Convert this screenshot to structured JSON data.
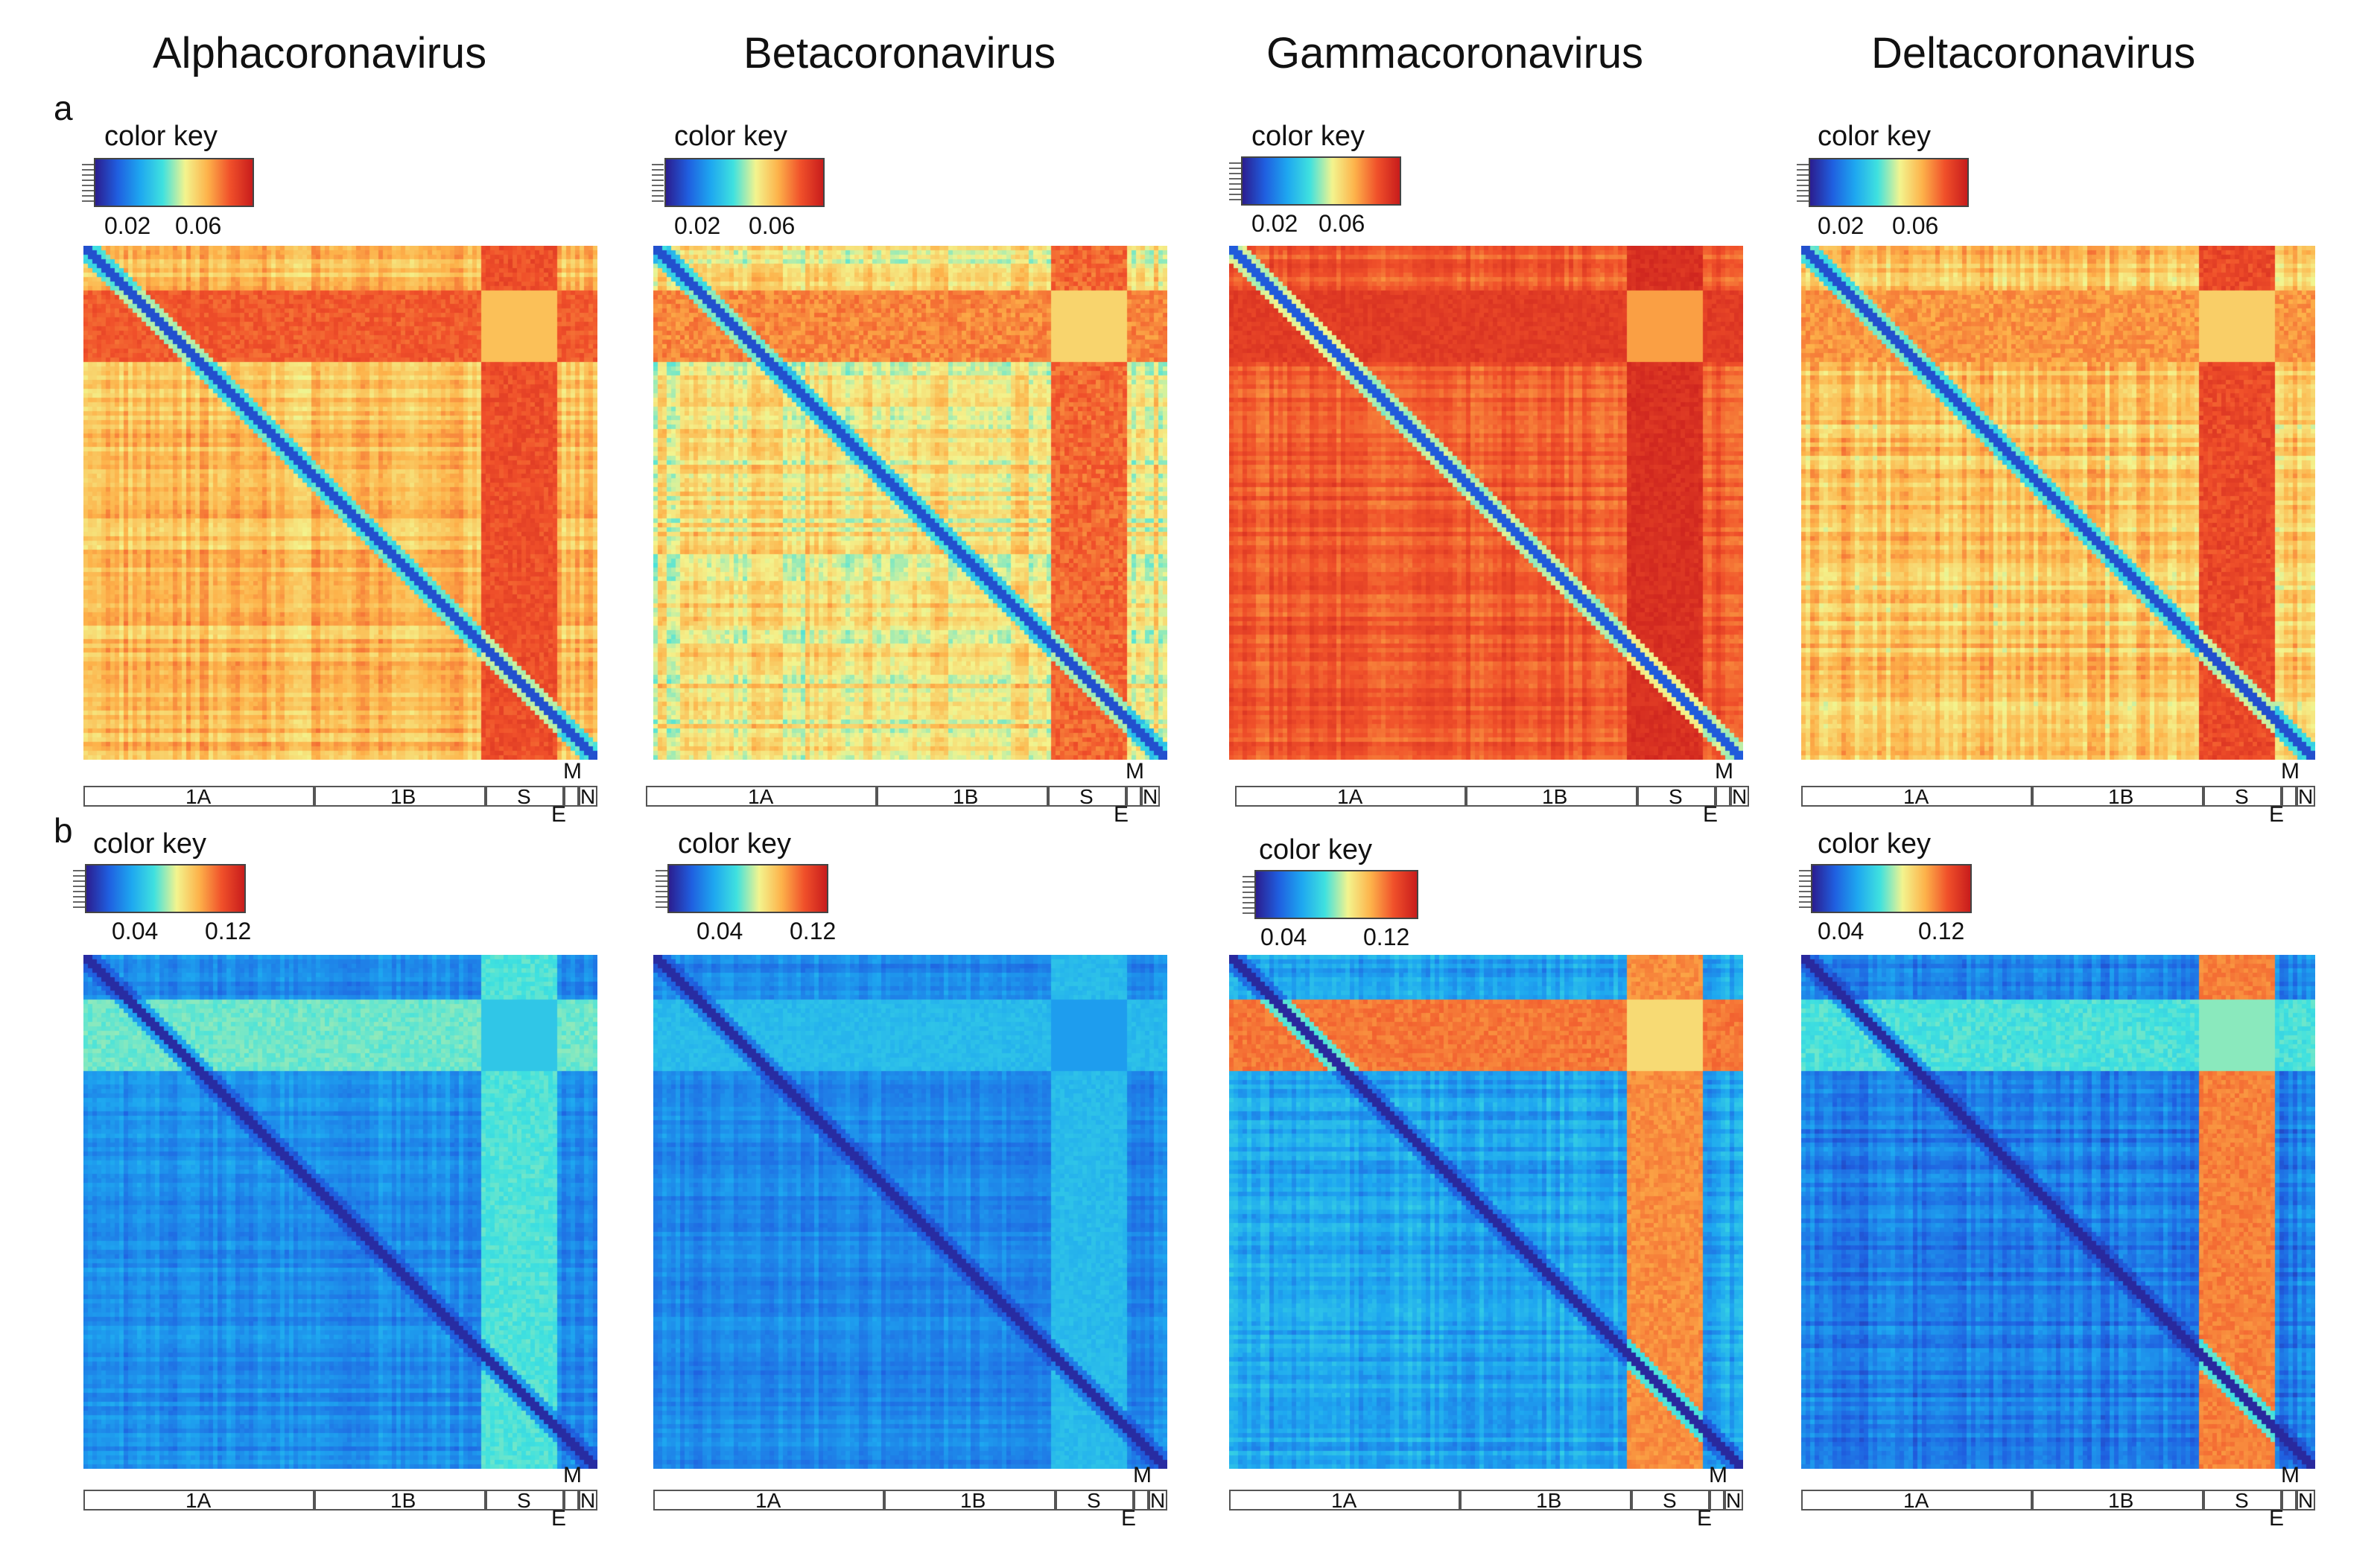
{
  "figure": {
    "columns": [
      "Alphacoronavirus",
      "Betacoronavirus",
      "Gammacoronavirus",
      "Deltacoronavirus"
    ],
    "rows": [
      "a",
      "b"
    ],
    "color_key_title": "color key",
    "genome_labels": {
      "seg1": "1A",
      "seg2": "1B",
      "s": "S",
      "m": "M",
      "n": "N",
      "e": "E"
    }
  },
  "colorscale": {
    "stops": [
      "#2b1d8f",
      "#1f5fe0",
      "#1ea7f0",
      "#3fe1df",
      "#f3f48e",
      "#fdb24a",
      "#f0502a",
      "#c81c1c"
    ]
  },
  "chart_data": [
    {
      "type": "heatmap",
      "row": "a",
      "title": "Alphacoronavirus",
      "color_key_ticks": [
        "0.02",
        "0.06"
      ],
      "range": [
        0,
        0.09
      ],
      "diag": 0.01,
      "base": 0.062,
      "band_row": 0.076,
      "band_col": 0.078,
      "noise": 0.007
    },
    {
      "type": "heatmap",
      "row": "a",
      "title": "Betacoronavirus",
      "color_key_ticks": [
        "0.02",
        "0.06"
      ],
      "range": [
        0,
        0.09
      ],
      "diag": 0.01,
      "base": 0.054,
      "band_row": 0.07,
      "band_col": 0.074,
      "noise": 0.009
    },
    {
      "type": "heatmap",
      "row": "a",
      "title": "Gammacoronavirus",
      "color_key_ticks": [
        "0.02",
        "0.06"
      ],
      "range": [
        0,
        0.09
      ],
      "diag": 0.012,
      "base": 0.076,
      "band_row": 0.082,
      "band_col": 0.085,
      "noise": 0.005
    },
    {
      "type": "heatmap",
      "row": "a",
      "title": "Deltacoronavirus",
      "color_key_ticks": [
        "0.02",
        "0.06"
      ],
      "range": [
        0,
        0.09
      ],
      "diag": 0.01,
      "base": 0.06,
      "band_row": 0.068,
      "band_col": 0.079,
      "noise": 0.008
    },
    {
      "type": "heatmap",
      "row": "b",
      "title": "Alphacoronavirus",
      "color_key_ticks": [
        "0.04",
        "0.12"
      ],
      "range": [
        0,
        0.15
      ],
      "diag": 0.005,
      "base": 0.035,
      "band_row": 0.07,
      "band_col": 0.066,
      "noise": 0.008
    },
    {
      "type": "heatmap",
      "row": "b",
      "title": "Betacoronavirus",
      "color_key_ticks": [
        "0.04",
        "0.12"
      ],
      "range": [
        0,
        0.15
      ],
      "diag": 0.005,
      "base": 0.034,
      "band_row": 0.05,
      "band_col": 0.05,
      "noise": 0.007
    },
    {
      "type": "heatmap",
      "row": "b",
      "title": "Gammacoronavirus",
      "color_key_ticks": [
        "0.04",
        "0.12"
      ],
      "range": [
        0,
        0.15
      ],
      "diag": 0.004,
      "base": 0.042,
      "band_row": 0.12,
      "band_col": 0.115,
      "noise": 0.01
    },
    {
      "type": "heatmap",
      "row": "b",
      "title": "Deltacoronavirus",
      "color_key_ticks": [
        "0.04",
        "0.12"
      ],
      "range": [
        0,
        0.15
      ],
      "diag": 0.004,
      "base": 0.03,
      "band_row": 0.065,
      "band_col": 0.118,
      "noise": 0.01
    }
  ]
}
